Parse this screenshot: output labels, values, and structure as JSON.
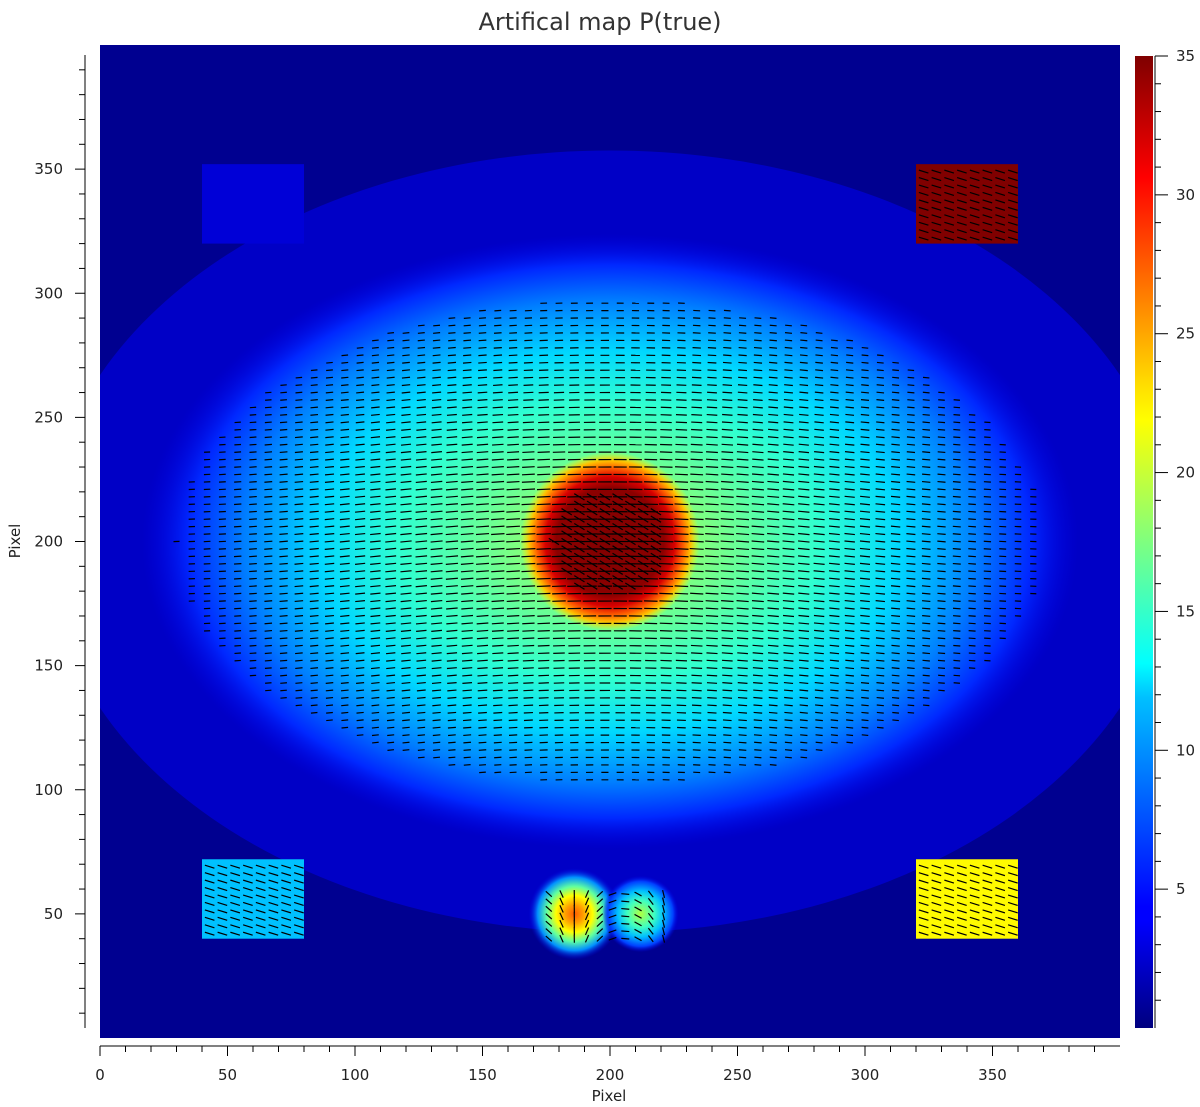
{
  "chart_data": {
    "type": "heatmap",
    "title": "Artifical map P(true)",
    "xlabel": "Pixel",
    "ylabel": "Pixel",
    "xlim": [
      0,
      400
    ],
    "ylim": [
      0,
      400
    ],
    "x_ticks": [
      0,
      50,
      100,
      150,
      200,
      250,
      300,
      350
    ],
    "y_ticks": [
      50,
      100,
      150,
      200,
      250,
      300,
      350
    ],
    "colormap": "jet",
    "colorbar": {
      "range": [
        0,
        35
      ],
      "ticks": [
        5,
        10,
        15,
        20,
        25,
        30,
        35
      ],
      "tick_labels": [
        "5",
        "10",
        "15",
        "20",
        "25",
        "30",
        "35"
      ]
    },
    "vectors_overlay": "black polarization line segments",
    "features": [
      {
        "name": "elliptical source",
        "shape": "ellipse",
        "center": [
          200,
          200
        ],
        "semi_axes": [
          170,
          105
        ],
        "peak_value": 18,
        "vector_orientation": "horizontal"
      },
      {
        "name": "central disk",
        "shape": "disk",
        "center": [
          200,
          200
        ],
        "radius": 22,
        "value": 35,
        "vector_orientation": "diagonal"
      },
      {
        "name": "square top-left",
        "shape": "square",
        "x_range": [
          40,
          80
        ],
        "y_range": [
          320,
          352
        ],
        "value": 3,
        "has_vectors": false
      },
      {
        "name": "square top-right",
        "shape": "square",
        "x_range": [
          320,
          360
        ],
        "y_range": [
          320,
          352
        ],
        "value": 35,
        "has_vectors": true
      },
      {
        "name": "square bottom-left",
        "shape": "square",
        "x_range": [
          40,
          80
        ],
        "y_range": [
          40,
          72
        ],
        "value": 11,
        "has_vectors": true
      },
      {
        "name": "square bottom-right",
        "shape": "square",
        "x_range": [
          320,
          360
        ],
        "y_range": [
          40,
          72
        ],
        "value": 22,
        "has_vectors": true
      },
      {
        "name": "double source",
        "shape": "blobs",
        "centers": [
          [
            186,
            50
          ],
          [
            212,
            50
          ]
        ],
        "peak_value": 27
      }
    ]
  }
}
